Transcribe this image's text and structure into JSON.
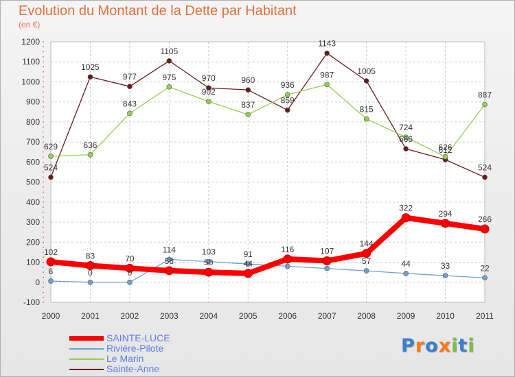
{
  "title": "Evolution du Montant de la Dette par Habitant",
  "unit_label": "(en €)",
  "logo": "Proxiti",
  "chart_data": {
    "type": "line",
    "categories": [
      "2000",
      "2001",
      "2002",
      "2003",
      "2004",
      "2005",
      "2006",
      "2007",
      "2008",
      "2009",
      "2010",
      "2011"
    ],
    "ylim": [
      -100,
      1200
    ],
    "yticks": [
      -100,
      0,
      100,
      200,
      300,
      400,
      500,
      600,
      700,
      800,
      900,
      1000,
      1100,
      1200
    ],
    "grid": true,
    "legend_position": "bottom-left",
    "series": [
      {
        "name": "Sainte-Anne",
        "color": "#6b1a1a",
        "values": [
          524,
          1025,
          977,
          1105,
          970,
          960,
          859,
          1143,
          1005,
          666,
          612,
          524
        ],
        "labels": [
          "524",
          "1025",
          "977",
          "1105",
          "970",
          "960",
          "859",
          "1143",
          "1005",
          "666",
          "612",
          "524"
        ]
      },
      {
        "name": "Le Marin",
        "color": "#92d050",
        "values": [
          629,
          636,
          843,
          975,
          902,
          837,
          936,
          987,
          815,
          724,
          626,
          887
        ],
        "labels": [
          "629",
          "636",
          "843",
          "975",
          "902",
          "837",
          "936",
          "987",
          "815",
          "724",
          "626",
          "887"
        ]
      },
      {
        "name": "Rivière-Pilote",
        "color": "#6fa0d0",
        "values": [
          6,
          0,
          0,
          114,
          103,
          91,
          80,
          69,
          57,
          44,
          33,
          22
        ],
        "labels": [
          "6",
          "0",
          "0",
          "114",
          "103",
          "91",
          "",
          "",
          "57",
          "44",
          "33",
          "22"
        ]
      },
      {
        "name": "SAINTE-LUCE",
        "color": "#ff0000",
        "values": [
          102,
          83,
          70,
          58,
          50,
          44,
          116,
          107,
          144,
          322,
          294,
          266
        ],
        "labels": [
          "102",
          "83",
          "70",
          "58",
          "50",
          "44",
          "116",
          "107",
          "144",
          "322",
          "294",
          "266"
        ]
      }
    ]
  }
}
